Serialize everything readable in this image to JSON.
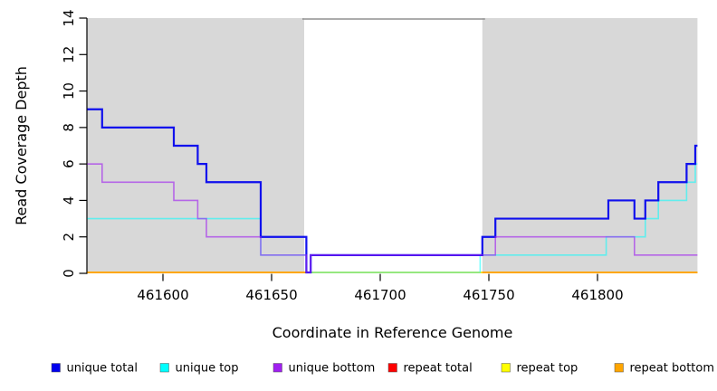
{
  "chart_data": {
    "type": "line",
    "subtype": "step",
    "title": "",
    "xlabel": "Coordinate in Reference Genome",
    "ylabel": "Read Coverage Depth",
    "xlim": [
      461565,
      461846
    ],
    "ylim": [
      0,
      14
    ],
    "x_ticks": [
      461600,
      461650,
      461700,
      461750,
      461800
    ],
    "y_ticks": [
      0,
      2,
      4,
      6,
      8,
      10,
      12,
      14
    ],
    "grid": false,
    "legend_position": "bottom",
    "shaded_regions": [
      {
        "from": 461565,
        "to": 461665,
        "color": "#d8d8d8"
      },
      {
        "from": 461747,
        "to": 461846,
        "color": "#d8d8d8"
      }
    ],
    "gap_region": {
      "from": 461665,
      "to": 461747,
      "top_border_color": "#909090"
    },
    "series": [
      {
        "name": "unique total",
        "color": "#0000ee",
        "steps": [
          [
            461565,
            9
          ],
          [
            461572,
            8
          ],
          [
            461605,
            7
          ],
          [
            461616,
            6
          ],
          [
            461620,
            5
          ],
          [
            461645,
            2
          ],
          [
            461666,
            0
          ],
          [
            461668,
            1
          ],
          [
            461747,
            2
          ],
          [
            461753,
            3
          ],
          [
            461805,
            4
          ],
          [
            461817,
            3
          ],
          [
            461822,
            4
          ],
          [
            461828,
            5
          ],
          [
            461841,
            6
          ],
          [
            461845,
            7
          ]
        ]
      },
      {
        "name": "unique top",
        "color": "#00ffff",
        "steps": [
          [
            461565,
            3
          ],
          [
            461645,
            1
          ],
          [
            461666,
            0
          ],
          [
            461746,
            1
          ],
          [
            461804,
            2
          ],
          [
            461822,
            3
          ],
          [
            461828,
            4
          ],
          [
            461841,
            5
          ],
          [
            461845,
            6
          ]
        ]
      },
      {
        "name": "unique bottom",
        "color": "#a020f0",
        "steps": [
          [
            461565,
            6
          ],
          [
            461572,
            5
          ],
          [
            461605,
            4
          ],
          [
            461616,
            3
          ],
          [
            461620,
            2
          ],
          [
            461645,
            1
          ],
          [
            461666,
            0
          ],
          [
            461668,
            1
          ],
          [
            461753,
            2
          ],
          [
            461817,
            1
          ]
        ]
      },
      {
        "name": "repeat total",
        "color": "#ff0000",
        "steps": [
          [
            461565,
            0
          ]
        ]
      },
      {
        "name": "repeat top",
        "color": "#ffff00",
        "steps": [
          [
            461565,
            0
          ]
        ]
      },
      {
        "name": "repeat bottom",
        "color": "#ffa500",
        "steps": [
          [
            461565,
            0
          ]
        ],
        "segments": [
          [
            461565,
            461666
          ],
          [
            461747,
            461846
          ]
        ]
      }
    ]
  },
  "legend": {
    "items": [
      {
        "label": "unique total",
        "color": "#0000ee"
      },
      {
        "label": "unique top",
        "color": "#00ffff"
      },
      {
        "label": "unique bottom",
        "color": "#a020f0"
      },
      {
        "label": "repeat total",
        "color": "#ff0000"
      },
      {
        "label": "repeat top",
        "color": "#ffff00"
      },
      {
        "label": "repeat bottom",
        "color": "#ffa500"
      }
    ]
  }
}
